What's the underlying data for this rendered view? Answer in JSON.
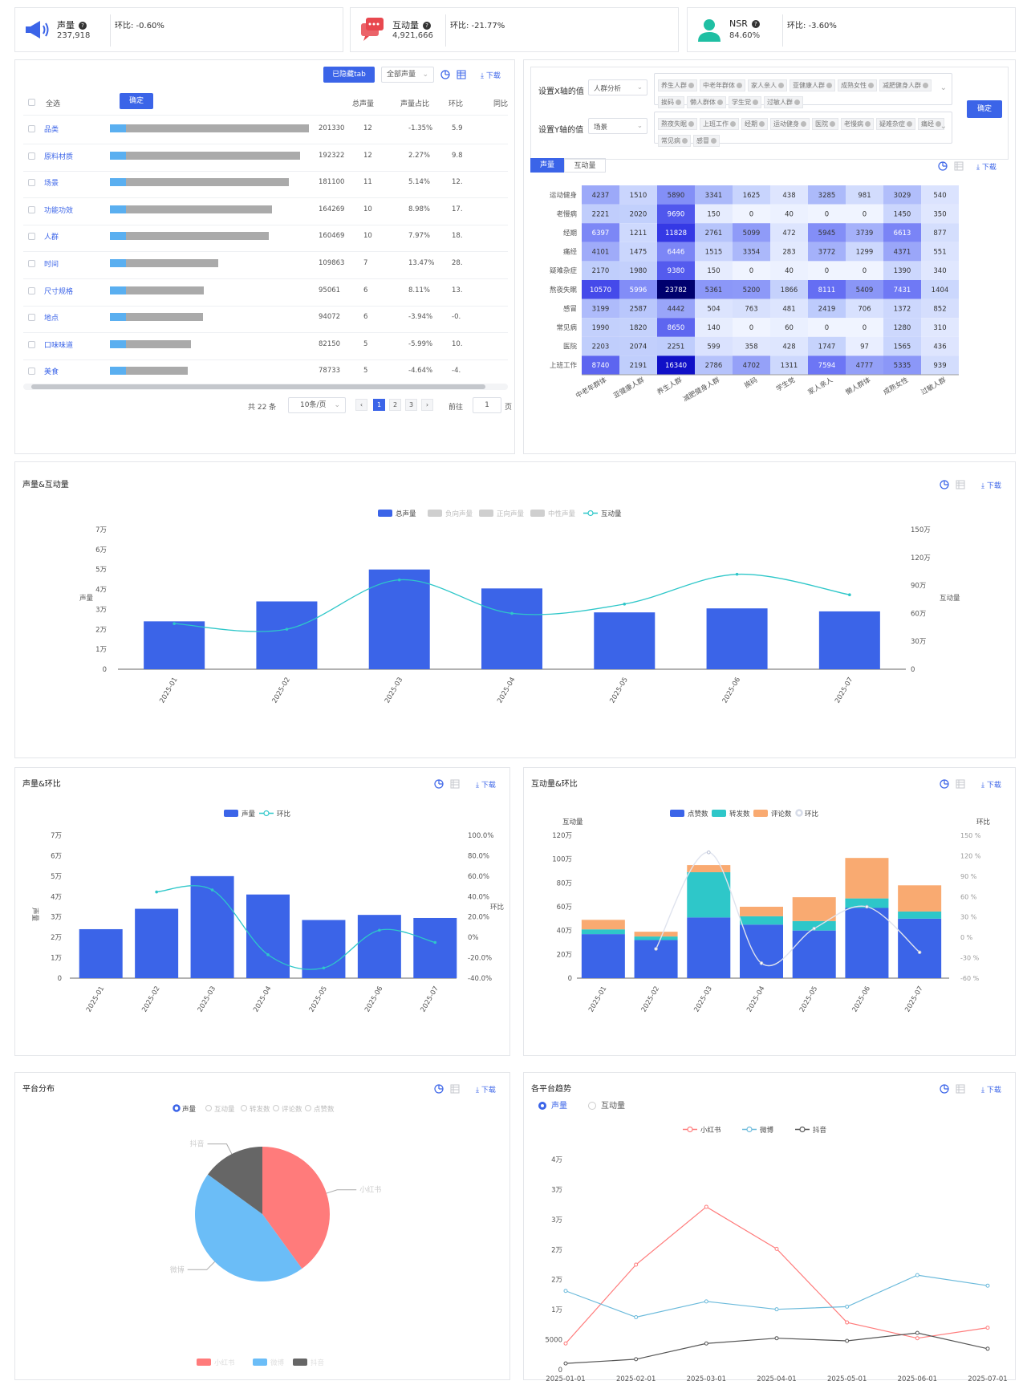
{
  "kpis": [
    {
      "label": "声量",
      "value": "237,918",
      "change": "环比: -0.60%"
    },
    {
      "label": "互动量",
      "value": "4,921,666",
      "change": "环比: -21.77%"
    },
    {
      "label": "NSR",
      "value": "84.60%",
      "change": "环比: -3.60%"
    }
  ],
  "colors": {
    "primary": "#3b64e8",
    "blueBar": "#3b64e8",
    "teal": "#2ec7c9",
    "red": "#ff7b7b",
    "sky": "#6bbdf7",
    "grey": "#666666",
    "orange": "#f9aa71"
  },
  "table": {
    "hidden_tab_btn": "已隐藏tab",
    "volume_select": "全部声量",
    "download": "下载",
    "select_all": "全选",
    "confirm": "确定",
    "headers": [
      "总声量",
      "声量占比",
      "环比",
      "同比"
    ],
    "rows": [
      {
        "name": "品类",
        "vol": "201330",
        "pct": "12",
        "mom": "-1.35%",
        "yoy": "5.9",
        "ratio": 1.0
      },
      {
        "name": "原料材质",
        "vol": "192322",
        "pct": "12",
        "mom": "2.27%",
        "yoy": "9.8",
        "ratio": 0.955
      },
      {
        "name": "场景",
        "vol": "181100",
        "pct": "11",
        "mom": "5.14%",
        "yoy": "12.",
        "ratio": 0.9
      },
      {
        "name": "功能功效",
        "vol": "164269",
        "pct": "10",
        "mom": "8.98%",
        "yoy": "17.",
        "ratio": 0.816
      },
      {
        "name": "人群",
        "vol": "160469",
        "pct": "10",
        "mom": "7.97%",
        "yoy": "18.",
        "ratio": 0.797
      },
      {
        "name": "时间",
        "vol": "109863",
        "pct": "7",
        "mom": "13.47%",
        "yoy": "28.",
        "ratio": 0.546
      },
      {
        "name": "尺寸规格",
        "vol": "95061",
        "pct": "6",
        "mom": "8.11%",
        "yoy": "13.",
        "ratio": 0.472
      },
      {
        "name": "地点",
        "vol": "94072",
        "pct": "6",
        "mom": "-3.94%",
        "yoy": "-0.",
        "ratio": 0.467
      },
      {
        "name": "口味味道",
        "vol": "82150",
        "pct": "5",
        "mom": "-5.99%",
        "yoy": "10.",
        "ratio": 0.408
      },
      {
        "name": "美食",
        "vol": "78733",
        "pct": "5",
        "mom": "-4.64%",
        "yoy": "-4.",
        "ratio": 0.391
      }
    ],
    "pagination": {
      "total": "共 22 条",
      "per_page": "10条/页",
      "pages": [
        "1",
        "2",
        "3"
      ],
      "goto": "前往",
      "goto_value": "1",
      "page_suffix": "页"
    }
  },
  "heatmap_panel": {
    "x_label": "设置X轴的值",
    "x_select": "人群分析",
    "x_tags": [
      "养生人群",
      "中老年群体",
      "家人亲人",
      "亚健康人群",
      "成熟女性",
      "减肥健身人群",
      "挨码",
      "懒人群体",
      "学生党",
      "过敏人群"
    ],
    "y_label": "设置Y轴的值",
    "y_select": "场景",
    "y_tags": [
      "熬夜失眠",
      "上班工作",
      "经期",
      "运动健身",
      "医院",
      "老慢病",
      "疑难杂症",
      "痛经",
      "常见病",
      "感冒"
    ],
    "confirm": "确定",
    "tabs": [
      "声量",
      "互动量"
    ],
    "download": "下载"
  },
  "chart_data": [
    {
      "id": "heatmap",
      "type": "heatmap",
      "x": [
        "中老年群体",
        "亚健康人群",
        "养生人群",
        "减肥健身人群",
        "挨码",
        "学生党",
        "家人亲人",
        "懒人群体",
        "成熟女性",
        "过敏人群"
      ],
      "y": [
        "运动健身",
        "老慢病",
        "经期",
        "痛经",
        "疑难杂症",
        "熬夜失眠",
        "感冒",
        "常见病",
        "医院",
        "上班工作"
      ],
      "values": [
        [
          4237,
          1510,
          5890,
          3341,
          1625,
          438,
          3285,
          981,
          3029,
          540
        ],
        [
          2221,
          2020,
          9690,
          150,
          0,
          40,
          0,
          0,
          1450,
          350
        ],
        [
          6397,
          1211,
          11828,
          2761,
          5099,
          472,
          5945,
          3739,
          6613,
          877
        ],
        [
          4101,
          1475,
          6446,
          1515,
          3354,
          283,
          3772,
          1299,
          4371,
          551
        ],
        [
          2170,
          1980,
          9380,
          150,
          0,
          40,
          0,
          0,
          1390,
          340
        ],
        [
          10570,
          5996,
          23782,
          5361,
          5200,
          1866,
          8111,
          5409,
          7431,
          1404
        ],
        [
          3199,
          2587,
          4442,
          504,
          763,
          481,
          2419,
          706,
          1372,
          852
        ],
        [
          1990,
          1820,
          8650,
          140,
          0,
          60,
          0,
          0,
          1280,
          310
        ],
        [
          2203,
          2074,
          2251,
          599,
          358,
          428,
          1747,
          97,
          1565,
          436
        ],
        [
          8740,
          2191,
          16340,
          2786,
          4702,
          1311,
          7594,
          4777,
          5335,
          939
        ]
      ]
    },
    {
      "id": "vol-interact",
      "type": "bar",
      "title": "声量&互动量",
      "legend": [
        "总声量",
        "负向声量",
        "正向声量",
        "中性声量",
        "互动量"
      ],
      "categories": [
        "2025-01",
        "2025-02",
        "2025-03",
        "2025-04",
        "2025-05",
        "2025-06",
        "2025-07"
      ],
      "series": [
        {
          "name": "总声量",
          "values": [
            24000,
            34000,
            50000,
            40500,
            28500,
            30500,
            29000
          ]
        },
        {
          "name": "互动量",
          "values": [
            490000,
            430000,
            960000,
            600000,
            700000,
            1020000,
            800000
          ]
        }
      ],
      "ylabel": "声量",
      "y2label": "互动量",
      "ylim": [
        0,
        70000
      ],
      "y2lim": [
        0,
        1500000
      ],
      "yticks": [
        "0",
        "1万",
        "2万",
        "3万",
        "4万",
        "5万",
        "6万",
        "7万"
      ],
      "y2ticks": [
        "0",
        "30万",
        "60万",
        "90万",
        "120万",
        "150万"
      ],
      "download": "下载"
    },
    {
      "id": "vol-mom",
      "type": "bar",
      "title": "声量&环比",
      "legend": [
        "声量",
        "环比"
      ],
      "categories": [
        "2025-01",
        "2025-02",
        "2025-03",
        "2025-04",
        "2025-05",
        "2025-06",
        "2025-07"
      ],
      "series": [
        {
          "name": "声量",
          "values": [
            24000,
            34000,
            50000,
            41000,
            28500,
            31000,
            29500
          ]
        },
        {
          "name": "环比",
          "values": [
            null,
            44.5,
            46.5,
            -17.0,
            -30.0,
            7.0,
            -5.0
          ]
        }
      ],
      "ylabel": "声量",
      "y2label": "环比",
      "ylim": [
        0,
        70000
      ],
      "y2lim": [
        -40,
        100
      ],
      "yticks": [
        "0",
        "1万",
        "2万",
        "3万",
        "4万",
        "5万",
        "6万",
        "7万"
      ],
      "y2ticks": [
        "-40.0%",
        "-20.0%",
        "0%",
        "20.0%",
        "40.0%",
        "60.0%",
        "80.0%",
        "100.0%"
      ],
      "download": "下载"
    },
    {
      "id": "interact-mom",
      "type": "bar",
      "title": "互动量&环比",
      "legend": [
        "点赞数",
        "转发数",
        "评论数",
        "环比"
      ],
      "categories": [
        "2025-01",
        "2025-02",
        "2025-03",
        "2025-04",
        "2025-05",
        "2025-06",
        "2025-07"
      ],
      "series": [
        {
          "name": "点赞数",
          "values": [
            370000,
            320000,
            510000,
            450000,
            400000,
            590000,
            500000
          ]
        },
        {
          "name": "转发数",
          "values": [
            40000,
            30000,
            380000,
            70000,
            80000,
            80000,
            60000
          ]
        },
        {
          "name": "评论数",
          "values": [
            80000,
            40000,
            60000,
            80000,
            200000,
            340000,
            220000
          ]
        },
        {
          "name": "环比",
          "values": [
            null,
            -17,
            125,
            -38,
            13,
            45,
            -22
          ]
        }
      ],
      "ylabel": "互动量",
      "y2label": "环比",
      "ylim": [
        0,
        1200000
      ],
      "y2lim": [
        -60,
        150
      ],
      "yticks": [
        "0",
        "20万",
        "40万",
        "60万",
        "80万",
        "100万",
        "120万"
      ],
      "y2ticks": [
        "-60 %",
        "-30 %",
        "0 %",
        "30 %",
        "60 %",
        "90 %",
        "120 %",
        "150 %"
      ],
      "download": "下载"
    },
    {
      "id": "platform-pie",
      "type": "pie",
      "title": "平台分布",
      "radio": [
        "声量",
        "互动量",
        "转发数",
        "评论数",
        "点赞数"
      ],
      "slices": [
        {
          "name": "小红书",
          "value": 40
        },
        {
          "name": "微博",
          "value": 45
        },
        {
          "name": "抖音",
          "value": 15
        }
      ],
      "download": "下载"
    },
    {
      "id": "platform-trend",
      "type": "line",
      "title": "各平台趋势",
      "radio": [
        "声量",
        "互动量"
      ],
      "categories": [
        "2025-01-01",
        "2025-02-01",
        "2025-03-01",
        "2025-04-01",
        "2025-05-01",
        "2025-06-01",
        "2025-07-01"
      ],
      "series": [
        {
          "name": "小红书",
          "values": [
            5000,
            20000,
            31000,
            23000,
            9000,
            6000,
            8000
          ]
        },
        {
          "name": "微博",
          "values": [
            15000,
            10000,
            13000,
            11500,
            12000,
            18000,
            16000
          ]
        },
        {
          "name": "抖音",
          "values": [
            1200,
            2000,
            5000,
            6000,
            5500,
            7000,
            4000
          ]
        }
      ],
      "ylim": [
        0,
        40000
      ],
      "yticks": [
        "0",
        "5000",
        "1万",
        "2万",
        "2万",
        "3万",
        "3万",
        "4万"
      ],
      "download": "下载"
    }
  ]
}
